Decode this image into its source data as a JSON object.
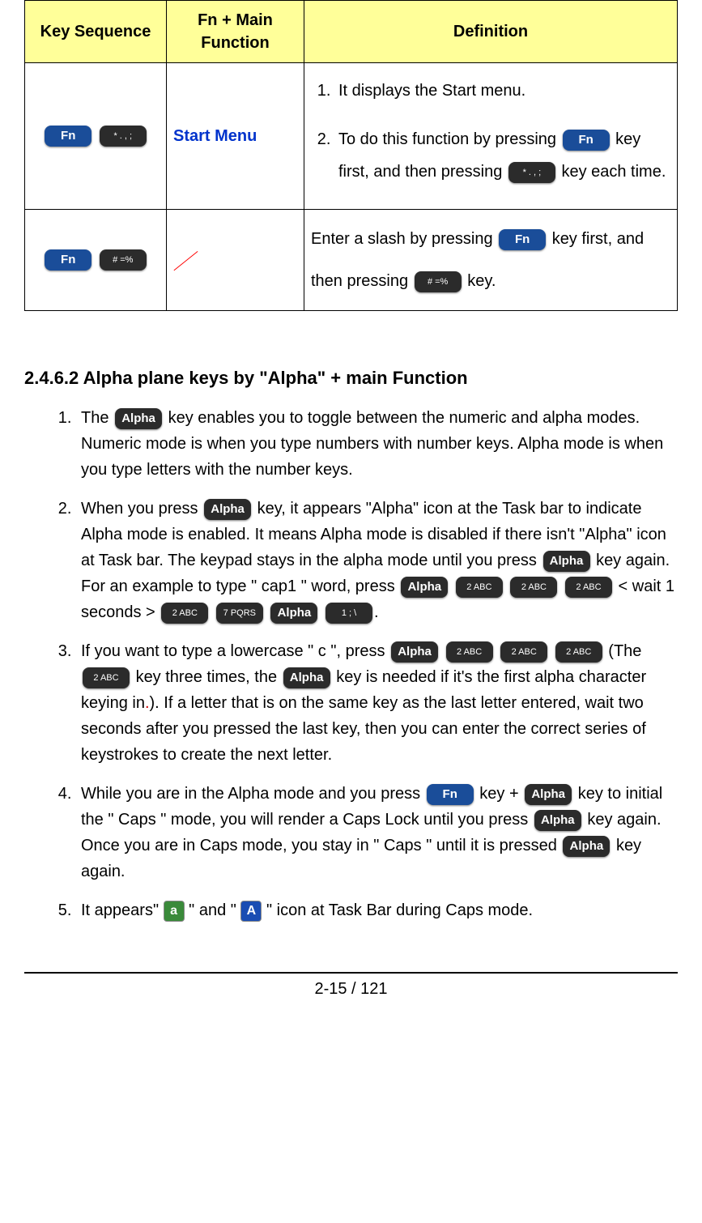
{
  "table": {
    "headers": {
      "key_sequence": "Key Sequence",
      "fn_main": "Fn + Main Function",
      "definition": "Definition"
    },
    "rows": [
      {
        "key_seq_keys": {
          "k1": "Fn",
          "k2": "*  . , ;"
        },
        "fn_label": "Start Menu",
        "def": {
          "li1": "It displays the Start menu.",
          "li2_a": "To do this function by pressing ",
          "li2_key1": "Fn",
          "li2_b": " key first, and then pressing ",
          "li2_key2": "*  . , ;",
          "li2_c": " key each time."
        }
      },
      {
        "key_seq_keys": {
          "k1": "Fn",
          "k2": "#  =%"
        },
        "fn_label": "／",
        "def": {
          "a": "Enter a slash by pressing ",
          "key1": "Fn",
          "b": " key first, and then pressing ",
          "key2": "#  =%",
          "c": " key."
        }
      }
    ]
  },
  "section": {
    "title": "2.4.6.2 Alpha plane keys by \"Alpha\" + main Function",
    "items": {
      "i1": {
        "a": "The ",
        "key1": "Alpha",
        "b": " key enables you to toggle between the numeric and alpha modes. Numeric mode is when you type numbers with number keys. Alpha mode is when you type letters with the number keys."
      },
      "i2": {
        "a": "When you press ",
        "key1": "Alpha",
        "b": " key, it appears \"Alpha\" icon at the Task bar to indicate Alpha mode is enabled. It means Alpha mode is disabled if there isn't \"Alpha\" icon at Task bar. The keypad stays in the alpha mode until you press ",
        "key2": "Alpha",
        "c": " key again. For an example to type \" cap1 \" word, press ",
        "seq1": {
          "k1": "Alpha",
          "k2": "2 ABC",
          "k3": "2 ABC",
          "k4": "2 ABC"
        },
        "d": " < wait 1 seconds > ",
        "seq2": {
          "k1": "2 ABC",
          "k2": "7 PQRS",
          "k3": "Alpha",
          "k4": "1  ; \\"
        },
        "e": "."
      },
      "i3": {
        "a": "If you want to type a lowercase \" c \", press ",
        "seq1": {
          "k1": "Alpha",
          "k2": "2 ABC",
          "k3": "2 ABC",
          "k4": "2 ABC"
        },
        "b": " (The ",
        "keyb": "2 ABC",
        "c": " key three times, the ",
        "keyc": "Alpha",
        "d": " key is needed if it's the first alpha character keying in",
        "dot": ".",
        "e": "). If a letter that is on the same key as the last letter entered, wait two seconds after you pressed the last key, then you can enter the correct series of keystrokes to create the next letter."
      },
      "i4": {
        "a": "While you are in the Alpha mode and you press ",
        "key1": "Fn",
        "b": " key + ",
        "key2": "Alpha",
        "c": " key to initial the \" Caps \" mode, you will render a Caps Lock until you press ",
        "key3": "Alpha",
        "d": " key again. Once you are in Caps mode, you stay in \" Caps \" until it is pressed ",
        "key4": "Alpha",
        "e": " key again."
      },
      "i5": {
        "a": "It appears\" ",
        "icon1": "a",
        "b": " \" and \" ",
        "icon2": "A",
        "c": " \" icon at Task Bar during Caps mode."
      }
    }
  },
  "footer": {
    "page": "2-15 / 121"
  }
}
